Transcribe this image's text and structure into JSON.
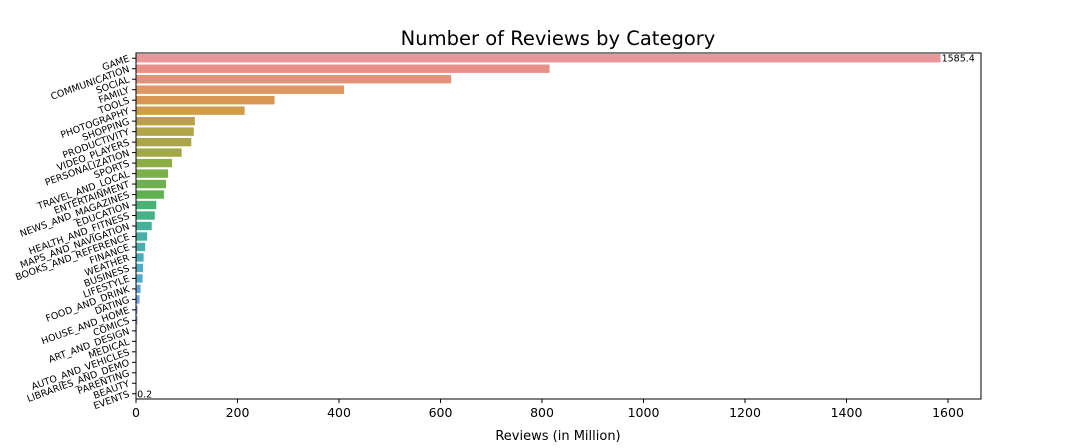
{
  "chart_data": {
    "type": "bar",
    "orientation": "horizontal",
    "title": "Number of Reviews by Category",
    "xlabel": "Reviews (in Million)",
    "ylabel": "",
    "xlim": [
      0,
      1665
    ],
    "xticks": [
      0,
      200,
      400,
      600,
      800,
      1000,
      1200,
      1400,
      1600
    ],
    "grid": false,
    "legend": "none",
    "categories": [
      "GAME",
      "COMMUNICATION",
      "SOCIAL",
      "FAMILY",
      "TOOLS",
      "PHOTOGRAPHY",
      "SHOPPING",
      "PRODUCTIVITY",
      "VIDEO_PLAYERS",
      "PERSONALIZATION",
      "SPORTS",
      "TRAVEL_AND_LOCAL",
      "ENTERTAINMENT",
      "NEWS_AND_MAGAZINES",
      "EDUCATION",
      "HEALTH_AND_FITNESS",
      "MAPS_AND_NAVIGATION",
      "BOOKS_AND_REFERENCE",
      "FINANCE",
      "WEATHER",
      "BUSINESS",
      "LIFESTYLE",
      "FOOD_AND_DRINK",
      "DATING",
      "HOUSE_AND_HOME",
      "COMICS",
      "ART_AND_DESIGN",
      "MEDICAL",
      "AUTO_AND_VEHICLES",
      "LIBRARIES_AND_DEMO",
      "PARENTING",
      "BEAUTY",
      "EVENTS"
    ],
    "values": [
      1585.4,
      815,
      621,
      410,
      273,
      214,
      116,
      114,
      109,
      90,
      71,
      63,
      59,
      55,
      40,
      37,
      31,
      22,
      18,
      15,
      14,
      13,
      9,
      7,
      3,
      3,
      1.4,
      1.2,
      1.2,
      1.0,
      1.0,
      0.4,
      0.2
    ],
    "data_labels": [
      {
        "index": 0,
        "text": "1585.4"
      },
      {
        "index": 32,
        "text": "0.2"
      }
    ],
    "colors": [
      "#e8989b",
      "#e88f8a",
      "#e2927a",
      "#de9865",
      "#d99552",
      "#d09c48",
      "#baa04a",
      "#b2a448",
      "#aaa647",
      "#a3a846",
      "#8cad45",
      "#7bb047",
      "#6eb04c",
      "#5eb050",
      "#4ab276",
      "#48b18a",
      "#47b098",
      "#48afa6",
      "#4aaeb1",
      "#4cadba",
      "#50acc2",
      "#55abcb",
      "#5da6d3",
      "#6ea2df",
      "#849ce6",
      "#9694e6",
      "#a98cea",
      "#bd86ed",
      "#cc80eb",
      "#d77ee2",
      "#e07dd7",
      "#e784cb",
      "#e88bbd"
    ]
  }
}
